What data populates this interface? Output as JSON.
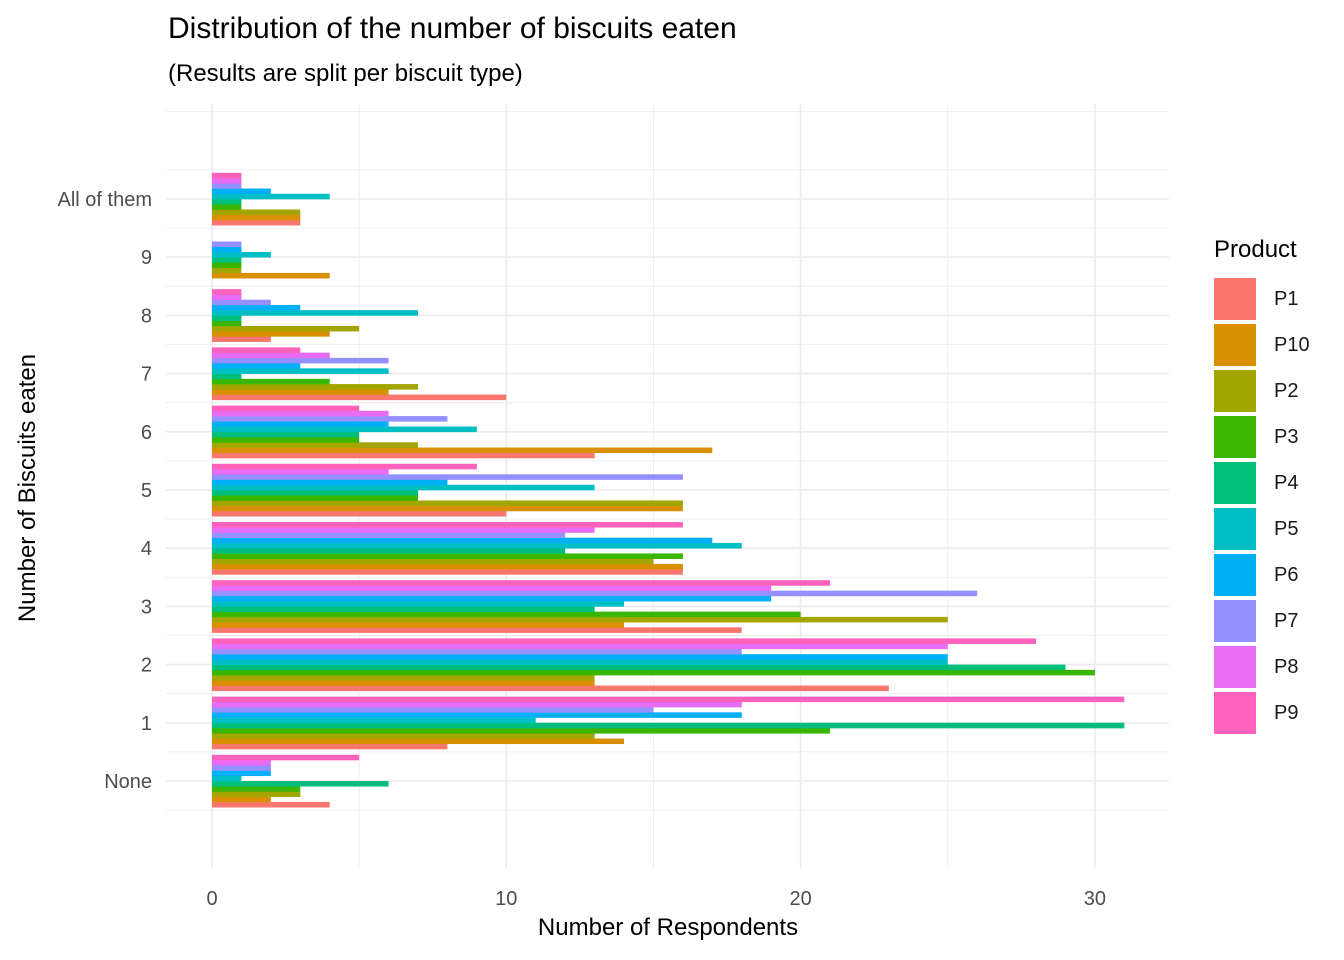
{
  "chart_data": {
    "type": "bar",
    "orientation": "horizontal",
    "title": "Distribution of the number of biscuits eaten",
    "subtitle": "(Results are split per biscuit type)",
    "xlabel": "Number of Respondents",
    "ylabel": "Number of Biscuits eaten",
    "xlim": [
      0,
      32.5
    ],
    "xticks": [
      0,
      10,
      20,
      30
    ],
    "categories": [
      "None",
      "1",
      "2",
      "3",
      "4",
      "5",
      "6",
      "7",
      "8",
      "9",
      "All of them"
    ],
    "legend_title": "Product",
    "legend_position": "right",
    "grid": true,
    "series": [
      {
        "name": "P1",
        "color": "#F8766D",
        "values": [
          4,
          8,
          23,
          18,
          16,
          10,
          13,
          10,
          2,
          0,
          3
        ]
      },
      {
        "name": "P10",
        "color": "#D89000",
        "values": [
          2,
          14,
          13,
          14,
          16,
          16,
          17,
          6,
          4,
          4,
          3
        ]
      },
      {
        "name": "P2",
        "color": "#A3A500",
        "values": [
          3,
          13,
          13,
          25,
          15,
          16,
          7,
          7,
          5,
          1,
          3
        ]
      },
      {
        "name": "P3",
        "color": "#39B600",
        "values": [
          3,
          21,
          30,
          20,
          16,
          7,
          5,
          4,
          1,
          1,
          1
        ]
      },
      {
        "name": "P4",
        "color": "#00BF7D",
        "values": [
          6,
          31,
          29,
          13,
          12,
          7,
          5,
          1,
          1,
          1,
          1
        ]
      },
      {
        "name": "P5",
        "color": "#00BFC4",
        "values": [
          1,
          11,
          25,
          14,
          18,
          13,
          9,
          6,
          7,
          2,
          4
        ]
      },
      {
        "name": "P6",
        "color": "#00B0F6",
        "values": [
          2,
          18,
          25,
          19,
          17,
          8,
          6,
          3,
          3,
          1,
          2
        ]
      },
      {
        "name": "P7",
        "color": "#9590FF",
        "values": [
          2,
          15,
          18,
          26,
          12,
          16,
          8,
          6,
          2,
          1,
          1
        ]
      },
      {
        "name": "P8",
        "color": "#E76BF3",
        "values": [
          2,
          18,
          25,
          19,
          13,
          6,
          6,
          4,
          1,
          0,
          1
        ]
      },
      {
        "name": "P9",
        "color": "#FF62BC",
        "values": [
          5,
          31,
          28,
          21,
          16,
          9,
          5,
          3,
          1,
          0,
          1
        ]
      }
    ]
  }
}
